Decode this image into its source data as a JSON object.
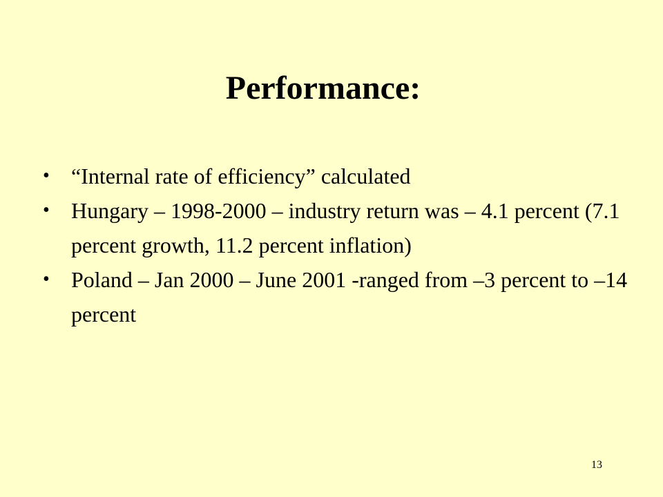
{
  "slide": {
    "title": "Performance:",
    "bullet_symbol": "•",
    "bullets": [
      "“Internal rate of efficiency” calculated",
      "Hungary – 1998-2000 – industry return was – 4.1 percent (7.1 percent growth, 11.2 percent inflation)",
      "Poland – Jan 2000 – June 2001 -ranged from –3 percent to –14 percent"
    ],
    "page_number": "13"
  },
  "colors": {
    "background": "#ffffcc",
    "text": "#000000"
  }
}
